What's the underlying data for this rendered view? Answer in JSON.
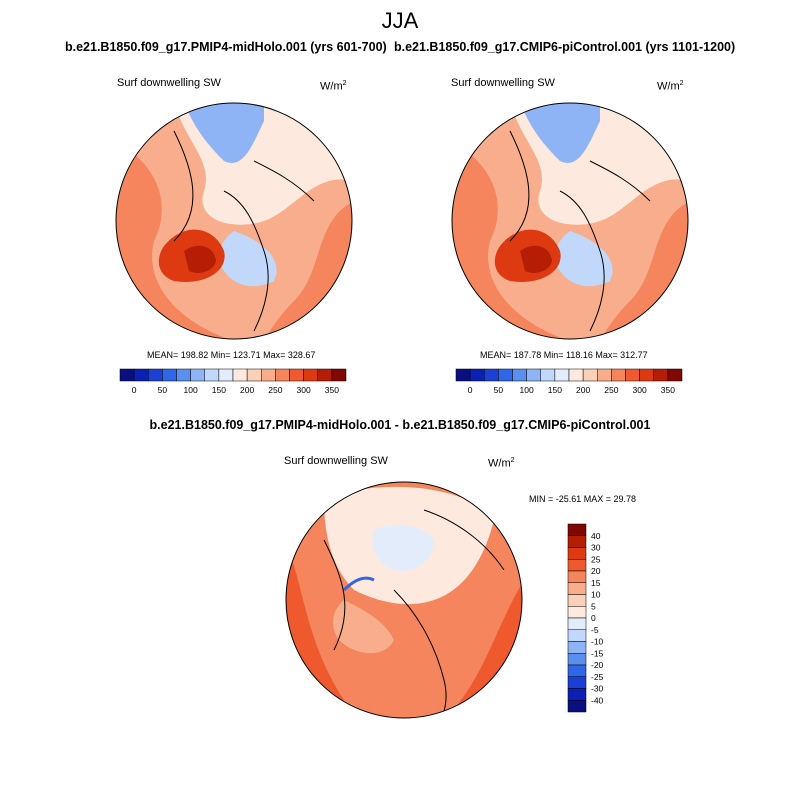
{
  "figure": {
    "title": "JJA"
  },
  "panels": [
    {
      "run_title": "b.e21.B1850.f09_g17.PMIP4-midHolo.001 (yrs 601-700)",
      "variable": "Surf downwelling SW",
      "units": "W/m",
      "units_exp": "2",
      "stats": "MEAN= 198.82  Min= 123.71  Max= 328.67",
      "colorbar": {
        "ticks": [
          "0",
          "50",
          "100",
          "150",
          "200",
          "250",
          "300",
          "350"
        ],
        "colors": [
          "#0a0f80",
          "#0a20b4",
          "#1a3fd6",
          "#3066e8",
          "#5a8ff0",
          "#8fb4f5",
          "#c2d8fa",
          "#e2ecfb",
          "#fde9dd",
          "#fbd0b6",
          "#f8ad8c",
          "#f5855d",
          "#ee5a2e",
          "#de3a12",
          "#b51d05",
          "#7f0800"
        ]
      }
    },
    {
      "run_title": "b.e21.B1850.f09_g17.CMIP6-piControl.001 (yrs 1101-1200)",
      "variable": "Surf downwelling SW",
      "units": "W/m",
      "units_exp": "2",
      "stats": "MEAN= 187.78  Min= 118.16  Max= 312.77",
      "colorbar": {
        "ticks": [
          "0",
          "50",
          "100",
          "150",
          "200",
          "250",
          "300",
          "350"
        ],
        "colors": [
          "#0a0f80",
          "#0a20b4",
          "#1a3fd6",
          "#3066e8",
          "#5a8ff0",
          "#8fb4f5",
          "#c2d8fa",
          "#e2ecfb",
          "#fde9dd",
          "#fbd0b6",
          "#f8ad8c",
          "#f5855d",
          "#ee5a2e",
          "#de3a12",
          "#b51d05",
          "#7f0800"
        ]
      }
    }
  ],
  "difference": {
    "run_title": "b.e21.B1850.f09_g17.PMIP4-midHolo.001 - b.e21.B1850.f09_g17.CMIP6-piControl.001",
    "variable": "Surf downwelling SW",
    "units": "W/m",
    "units_exp": "2",
    "stats": "MIN = -25.61 MAX =  29.78",
    "colorbar": {
      "ticks": [
        "40",
        "30",
        "25",
        "20",
        "15",
        "10",
        "5",
        "0",
        "-5",
        "-10",
        "-15",
        "-20",
        "-25",
        "-30",
        "-40"
      ],
      "colors": [
        "#7f0800",
        "#b51d05",
        "#de3a12",
        "#ee5a2e",
        "#f5855d",
        "#f8ad8c",
        "#fbd0b6",
        "#fde9dd",
        "#e2ecfb",
        "#c2d8fa",
        "#8fb4f5",
        "#5a8ff0",
        "#3066e8",
        "#1a3fd6",
        "#0a20b4",
        "#0a0f80"
      ]
    }
  }
}
